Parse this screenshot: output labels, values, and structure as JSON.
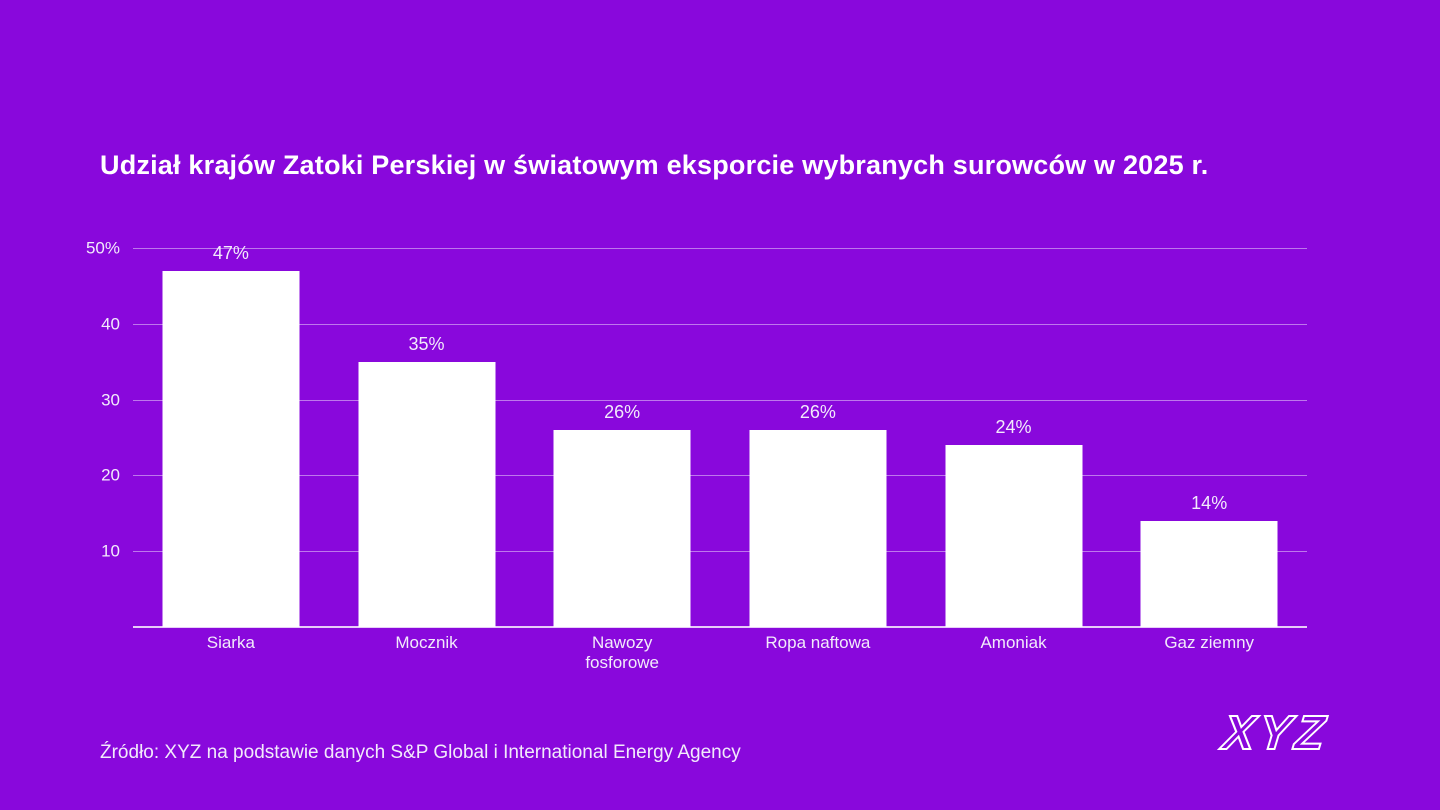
{
  "title": "Udział krajów Zatoki Perskiej w światowym eksporcie wybranych surowców w 2025 r.",
  "source": "Źródło: XYZ na podstawie danych S&P Global i International Energy Agency",
  "logo_text": "XYZ",
  "colors": {
    "background": "#8908DC",
    "bar": "#FFFFFF",
    "gridline": "rgba(255,255,255,0.45)",
    "axis_line": "rgba(255,255,255,0.8)",
    "text": "#F2EAFB",
    "title_text": "#FFFFFF"
  },
  "chart_data": {
    "type": "bar",
    "title": "Udział krajów Zatoki Perskiej w światowym eksporcie wybranych surowców w 2025 r.",
    "categories": [
      "Siarka",
      "Mocznik",
      "Nawozy fosforowe",
      "Ropa naftowa",
      "Amoniak",
      "Gaz ziemny"
    ],
    "values": [
      47,
      35,
      26,
      26,
      24,
      14
    ],
    "value_labels": [
      "47%",
      "35%",
      "26%",
      "26%",
      "24%",
      "14%"
    ],
    "xlabel": "",
    "ylabel": "",
    "ylim": [
      0,
      50
    ],
    "yticks": [
      {
        "value": 50,
        "label": "50%"
      },
      {
        "value": 40,
        "label": "40"
      },
      {
        "value": 30,
        "label": "30"
      },
      {
        "value": 20,
        "label": "20"
      },
      {
        "value": 10,
        "label": "10"
      }
    ],
    "grid": true,
    "legend": false,
    "bar_color": "#FFFFFF"
  }
}
